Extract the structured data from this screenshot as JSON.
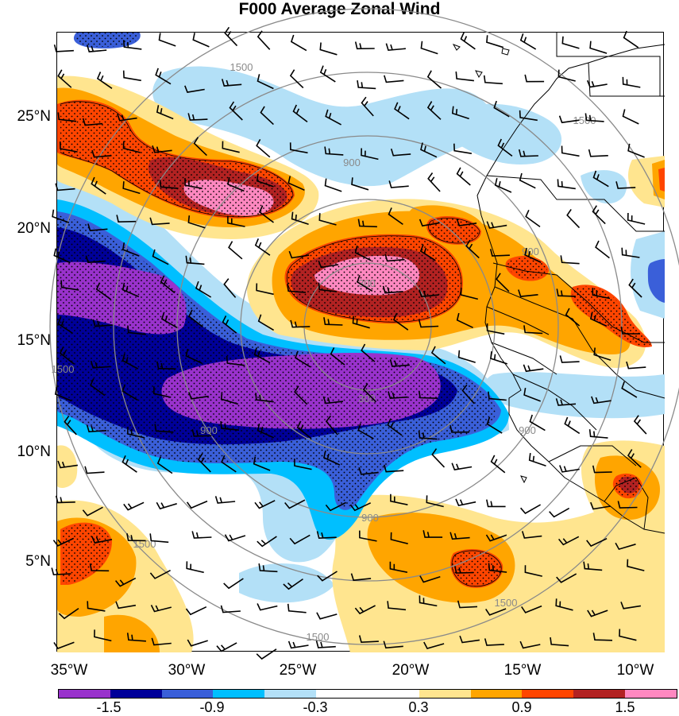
{
  "title": "F000 Average Zonal Wind",
  "latitude_labels": [
    "25°N",
    "20°N",
    "15°N",
    "10°N",
    "5°N"
  ],
  "longitude_labels": [
    "35°W",
    "30°W",
    "25°W",
    "20°W",
    "15°W",
    "10°W"
  ],
  "range_ring_labels": [
    "300",
    "300",
    "900",
    "900",
    "900",
    "900",
    "900",
    "1500",
    "1500",
    "1500",
    "1500",
    "1500",
    "1500"
  ],
  "colorbar": {
    "colors": [
      "#9932cc",
      "#000099",
      "#3a5fd9",
      "#00bfff",
      "#b3e0f7",
      "#ffffff",
      "#ffffff",
      "#ffe58f",
      "#ffa500",
      "#ff4500",
      "#b22222",
      "#ff88c0"
    ],
    "tick_labels": [
      "-1.5",
      "-0.9",
      "-0.3",
      "0.3",
      "0.9",
      "1.5"
    ]
  },
  "map_extent": {
    "lon_range": [
      -36.0,
      -8.3
    ],
    "lat_range": [
      1.5,
      28.8
    ]
  },
  "colors": {
    "strong_negative": "#9932cc",
    "negative_dark": "#000099",
    "negative": "#3a5fd9",
    "weak_negative": "#00bfff",
    "near_zero_negative": "#b3e0f7",
    "near_zero_positive": "#ffe58f",
    "weak_positive": "#ffa500",
    "positive": "#ff4500",
    "strong_positive": "#b22222",
    "max_positive": "#ff88c0",
    "range_rings": "#8a8a8a"
  }
}
